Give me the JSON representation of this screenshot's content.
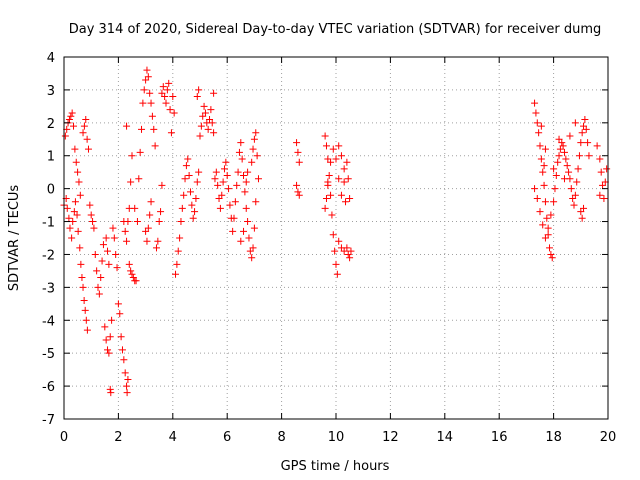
{
  "chart_data": {
    "type": "scatter",
    "title": "Day 314 of 2020, Sidereal Day-to-day VTEC variation (SDTVAR) for receiver dumg",
    "xlabel": "GPS time / hours",
    "ylabel": "SDTVAR / TECUs",
    "xlim": [
      0,
      20
    ],
    "ylim": [
      -7,
      4
    ],
    "xticks": [
      0,
      2,
      4,
      6,
      8,
      10,
      12,
      14,
      16,
      18,
      20
    ],
    "yticks": [
      -7,
      -6,
      -5,
      -4,
      -3,
      -2,
      -1,
      0,
      1,
      2,
      3,
      4
    ],
    "grid": true,
    "marker": "+",
    "color": "#ff0000",
    "series": [
      {
        "name": "SDTVAR",
        "points": [
          [
            0.0,
            -0.5
          ],
          [
            0.05,
            1.6
          ],
          [
            0.1,
            1.8
          ],
          [
            0.15,
            2.0
          ],
          [
            0.2,
            2.1
          ],
          [
            0.25,
            2.2
          ],
          [
            0.3,
            2.3
          ],
          [
            0.35,
            1.9
          ],
          [
            0.4,
            1.2
          ],
          [
            0.45,
            0.8
          ],
          [
            0.5,
            0.5
          ],
          [
            0.55,
            0.2
          ],
          [
            0.6,
            -0.2
          ],
          [
            0.08,
            -0.3
          ],
          [
            0.12,
            -0.6
          ],
          [
            0.18,
            -0.9
          ],
          [
            0.22,
            -1.2
          ],
          [
            0.28,
            -1.5
          ],
          [
            0.32,
            -1.0
          ],
          [
            0.38,
            -0.7
          ],
          [
            0.42,
            -0.4
          ],
          [
            0.48,
            -0.8
          ],
          [
            0.52,
            -1.3
          ],
          [
            0.58,
            -1.8
          ],
          [
            0.62,
            -2.3
          ],
          [
            0.66,
            -2.7
          ],
          [
            0.7,
            -3.0
          ],
          [
            0.74,
            -3.4
          ],
          [
            0.78,
            -3.7
          ],
          [
            0.82,
            -4.0
          ],
          [
            0.86,
            -4.3
          ],
          [
            0.7,
            1.7
          ],
          [
            0.75,
            1.9
          ],
          [
            0.8,
            2.1
          ],
          [
            0.85,
            1.5
          ],
          [
            0.9,
            1.2
          ],
          [
            0.95,
            -0.5
          ],
          [
            1.0,
            -0.8
          ],
          [
            1.05,
            -1.0
          ],
          [
            1.1,
            -1.2
          ],
          [
            1.15,
            -2.0
          ],
          [
            1.2,
            -2.5
          ],
          [
            1.25,
            -3.0
          ],
          [
            1.3,
            -3.2
          ],
          [
            1.35,
            -2.7
          ],
          [
            1.4,
            -2.2
          ],
          [
            1.45,
            -1.7
          ],
          [
            1.55,
            -1.5
          ],
          [
            1.6,
            -1.9
          ],
          [
            1.65,
            -2.3
          ],
          [
            1.5,
            -4.2
          ],
          [
            1.55,
            -4.6
          ],
          [
            1.6,
            -4.9
          ],
          [
            1.65,
            -5.0
          ],
          [
            1.7,
            -4.5
          ],
          [
            1.75,
            -4.0
          ],
          [
            1.7,
            -6.1
          ],
          [
            1.72,
            -6.2
          ],
          [
            1.8,
            -1.2
          ],
          [
            1.85,
            -1.5
          ],
          [
            1.9,
            -2.0
          ],
          [
            1.95,
            -2.4
          ],
          [
            2.0,
            -3.5
          ],
          [
            2.05,
            -3.8
          ],
          [
            2.1,
            -4.5
          ],
          [
            2.15,
            -4.9
          ],
          [
            2.2,
            -5.2
          ],
          [
            2.25,
            -5.6
          ],
          [
            2.3,
            -6.0
          ],
          [
            2.32,
            -6.2
          ],
          [
            2.35,
            -5.8
          ],
          [
            2.4,
            -2.3
          ],
          [
            2.45,
            -2.5
          ],
          [
            2.5,
            -2.6
          ],
          [
            2.55,
            -2.7
          ],
          [
            2.6,
            -2.8
          ],
          [
            2.65,
            -2.8
          ],
          [
            2.2,
            -1.0
          ],
          [
            2.25,
            -1.3
          ],
          [
            2.3,
            -1.6
          ],
          [
            2.35,
            -1.0
          ],
          [
            2.4,
            -0.6
          ],
          [
            2.45,
            0.2
          ],
          [
            2.5,
            1.0
          ],
          [
            2.3,
            1.9
          ],
          [
            2.6,
            -0.6
          ],
          [
            2.7,
            -1.0
          ],
          [
            2.75,
            0.3
          ],
          [
            2.8,
            1.1
          ],
          [
            2.85,
            1.8
          ],
          [
            2.9,
            2.6
          ],
          [
            2.95,
            3.0
          ],
          [
            3.0,
            3.3
          ],
          [
            3.05,
            3.6
          ],
          [
            3.1,
            3.4
          ],
          [
            3.15,
            2.9
          ],
          [
            3.2,
            2.6
          ],
          [
            3.25,
            2.2
          ],
          [
            3.3,
            1.8
          ],
          [
            3.35,
            1.3
          ],
          [
            3.0,
            -1.3
          ],
          [
            3.05,
            -1.6
          ],
          [
            3.1,
            -1.2
          ],
          [
            3.15,
            -0.8
          ],
          [
            3.2,
            -0.4
          ],
          [
            3.4,
            -1.8
          ],
          [
            3.45,
            -1.6
          ],
          [
            3.5,
            -1.0
          ],
          [
            3.55,
            -0.7
          ],
          [
            3.6,
            0.1
          ],
          [
            3.6,
            2.9
          ],
          [
            3.65,
            3.1
          ],
          [
            3.7,
            2.8
          ],
          [
            3.75,
            2.6
          ],
          [
            3.8,
            3.0
          ],
          [
            3.85,
            3.2
          ],
          [
            3.9,
            2.4
          ],
          [
            3.95,
            1.7
          ],
          [
            4.0,
            2.8
          ],
          [
            4.05,
            2.3
          ],
          [
            4.1,
            -2.6
          ],
          [
            4.15,
            -2.3
          ],
          [
            4.2,
            -1.9
          ],
          [
            4.25,
            -1.5
          ],
          [
            4.3,
            -1.0
          ],
          [
            4.35,
            -0.6
          ],
          [
            4.4,
            -0.2
          ],
          [
            4.45,
            0.3
          ],
          [
            4.5,
            0.7
          ],
          [
            4.55,
            0.9
          ],
          [
            4.6,
            0.4
          ],
          [
            4.65,
            -0.1
          ],
          [
            4.7,
            -0.5
          ],
          [
            4.75,
            -0.9
          ],
          [
            4.8,
            -0.7
          ],
          [
            4.85,
            -0.3
          ],
          [
            4.9,
            0.2
          ],
          [
            4.95,
            0.5
          ],
          [
            5.0,
            1.6
          ],
          [
            5.05,
            1.9
          ],
          [
            5.1,
            2.2
          ],
          [
            5.15,
            2.5
          ],
          [
            5.2,
            2.3
          ],
          [
            5.25,
            2.0
          ],
          [
            5.3,
            1.8
          ],
          [
            5.35,
            2.1
          ],
          [
            5.4,
            2.4
          ],
          [
            5.45,
            2.0
          ],
          [
            5.5,
            1.7
          ],
          [
            4.9,
            2.8
          ],
          [
            4.95,
            3.0
          ],
          [
            5.5,
            2.9
          ],
          [
            5.55,
            0.3
          ],
          [
            5.6,
            0.5
          ],
          [
            5.65,
            0.1
          ],
          [
            5.7,
            -0.3
          ],
          [
            5.75,
            -0.6
          ],
          [
            5.8,
            -0.2
          ],
          [
            5.85,
            0.2
          ],
          [
            5.9,
            0.6
          ],
          [
            5.95,
            0.8
          ],
          [
            6.0,
            0.4
          ],
          [
            6.05,
            0.0
          ],
          [
            6.1,
            -0.5
          ],
          [
            6.15,
            -0.9
          ],
          [
            6.2,
            -1.3
          ],
          [
            6.25,
            -0.9
          ],
          [
            6.3,
            -0.4
          ],
          [
            6.35,
            0.1
          ],
          [
            6.4,
            0.5
          ],
          [
            6.45,
            1.1
          ],
          [
            6.5,
            1.4
          ],
          [
            6.55,
            0.9
          ],
          [
            6.6,
            0.4
          ],
          [
            6.65,
            -0.1
          ],
          [
            6.7,
            -0.6
          ],
          [
            6.75,
            -1.0
          ],
          [
            6.8,
            -1.5
          ],
          [
            6.85,
            -1.9
          ],
          [
            6.9,
            -2.1
          ],
          [
            6.95,
            -1.8
          ],
          [
            7.0,
            -1.2
          ],
          [
            7.05,
            -0.4
          ],
          [
            6.9,
            0.8
          ],
          [
            6.95,
            1.2
          ],
          [
            7.0,
            1.5
          ],
          [
            7.05,
            1.7
          ],
          [
            7.1,
            1.0
          ],
          [
            7.15,
            0.3
          ],
          [
            6.7,
            0.2
          ],
          [
            6.75,
            0.5
          ],
          [
            6.6,
            -1.3
          ],
          [
            6.5,
            -1.6
          ],
          [
            8.55,
            1.4
          ],
          [
            8.6,
            1.1
          ],
          [
            8.65,
            0.8
          ],
          [
            8.55,
            0.1
          ],
          [
            8.6,
            -0.1
          ],
          [
            8.65,
            -0.2
          ],
          [
            9.6,
            1.6
          ],
          [
            9.65,
            1.3
          ],
          [
            9.7,
            0.9
          ],
          [
            9.75,
            0.4
          ],
          [
            9.8,
            -0.2
          ],
          [
            9.85,
            -0.8
          ],
          [
            9.9,
            -1.4
          ],
          [
            9.95,
            -1.9
          ],
          [
            10.0,
            -2.3
          ],
          [
            10.05,
            -2.6
          ],
          [
            9.7,
            0.2
          ],
          [
            9.8,
            0.8
          ],
          [
            9.9,
            1.2
          ],
          [
            10.0,
            0.9
          ],
          [
            10.1,
            0.3
          ],
          [
            10.2,
            -0.2
          ],
          [
            10.3,
            0.6
          ],
          [
            10.1,
            1.3
          ],
          [
            10.2,
            1.0
          ],
          [
            10.3,
            0.2
          ],
          [
            10.35,
            -0.4
          ],
          [
            10.4,
            0.8
          ],
          [
            10.45,
            0.3
          ],
          [
            10.5,
            -0.3
          ],
          [
            10.1,
            -1.6
          ],
          [
            10.2,
            -1.8
          ],
          [
            10.3,
            -1.9
          ],
          [
            10.4,
            -1.8
          ],
          [
            10.45,
            -2.0
          ],
          [
            10.5,
            -2.1
          ],
          [
            10.55,
            -1.9
          ],
          [
            9.6,
            -0.6
          ],
          [
            9.65,
            -0.3
          ],
          [
            9.7,
            0.1
          ],
          [
            17.3,
            2.6
          ],
          [
            17.35,
            2.3
          ],
          [
            17.4,
            2.0
          ],
          [
            17.45,
            1.7
          ],
          [
            17.5,
            1.3
          ],
          [
            17.55,
            0.9
          ],
          [
            17.6,
            0.5
          ],
          [
            17.65,
            0.1
          ],
          [
            17.7,
            -0.4
          ],
          [
            17.75,
            -0.9
          ],
          [
            17.8,
            -1.4
          ],
          [
            17.85,
            -1.8
          ],
          [
            17.9,
            -2.0
          ],
          [
            17.95,
            -2.1
          ],
          [
            17.3,
            0.0
          ],
          [
            17.4,
            -0.3
          ],
          [
            17.5,
            -0.7
          ],
          [
            17.6,
            -1.1
          ],
          [
            17.7,
            -1.5
          ],
          [
            17.8,
            -1.2
          ],
          [
            17.9,
            -0.8
          ],
          [
            18.0,
            -0.4
          ],
          [
            18.05,
            0.0
          ],
          [
            18.1,
            0.4
          ],
          [
            18.15,
            0.8
          ],
          [
            18.2,
            1.0
          ],
          [
            18.25,
            1.2
          ],
          [
            18.3,
            1.4
          ],
          [
            18.35,
            1.3
          ],
          [
            18.4,
            1.1
          ],
          [
            18.45,
            0.9
          ],
          [
            18.5,
            0.7
          ],
          [
            18.55,
            0.5
          ],
          [
            18.6,
            0.3
          ],
          [
            18.65,
            0.0
          ],
          [
            18.7,
            -0.3
          ],
          [
            18.75,
            -0.5
          ],
          [
            18.8,
            -0.2
          ],
          [
            18.85,
            0.2
          ],
          [
            18.9,
            0.6
          ],
          [
            18.95,
            1.0
          ],
          [
            19.0,
            1.4
          ],
          [
            19.05,
            1.7
          ],
          [
            19.1,
            1.9
          ],
          [
            19.15,
            2.1
          ],
          [
            19.2,
            1.8
          ],
          [
            19.25,
            1.4
          ],
          [
            19.3,
            1.0
          ],
          [
            19.0,
            -0.7
          ],
          [
            19.05,
            -0.9
          ],
          [
            19.1,
            -0.6
          ],
          [
            19.6,
            1.3
          ],
          [
            19.7,
            0.9
          ],
          [
            19.75,
            0.5
          ],
          [
            19.8,
            0.1
          ],
          [
            19.85,
            -0.3
          ],
          [
            19.9,
            0.2
          ],
          [
            19.95,
            0.6
          ],
          [
            19.7,
            -0.2
          ],
          [
            18.2,
            1.5
          ],
          [
            18.6,
            1.6
          ],
          [
            18.8,
            2.0
          ],
          [
            17.7,
            1.2
          ],
          [
            17.55,
            1.9
          ],
          [
            17.65,
            0.7
          ],
          [
            18.4,
            0.3
          ],
          [
            18.0,
            0.6
          ]
        ]
      }
    ]
  }
}
